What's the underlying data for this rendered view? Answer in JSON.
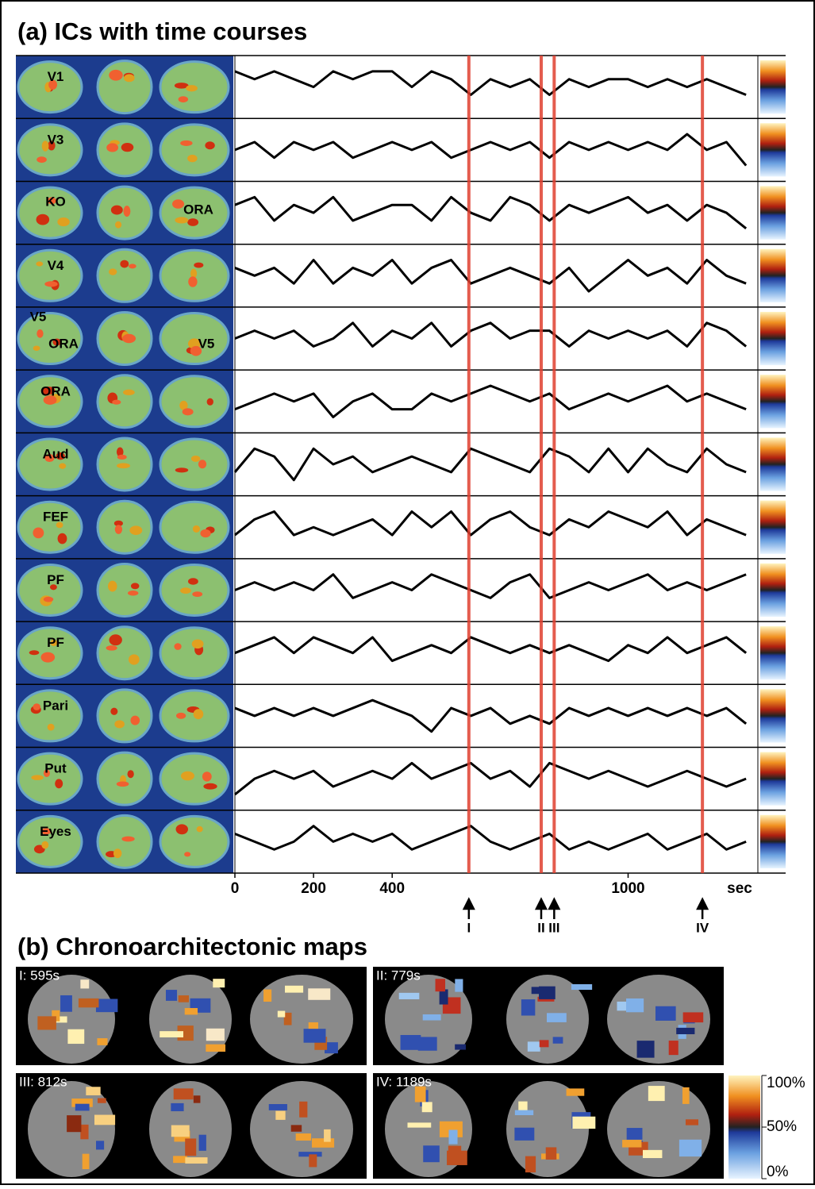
{
  "panel_a": {
    "title": "(a) ICs with time courses",
    "xlim": [
      0,
      1330
    ],
    "ylim": [
      -3,
      3
    ],
    "xticks": [
      0,
      200,
      400,
      1000
    ],
    "x_unit": "sec",
    "x": [
      0,
      50,
      100,
      150,
      200,
      250,
      300,
      350,
      400,
      450,
      500,
      550,
      600,
      650,
      700,
      750,
      800,
      850,
      900,
      950,
      1000,
      1050,
      1100,
      1150,
      1200,
      1250,
      1300
    ],
    "components": [
      {
        "labels": [
          "V1"
        ],
        "values": [
          2,
          1,
          2,
          1,
          0,
          2,
          1,
          2,
          2,
          0,
          2,
          1,
          -1,
          1,
          0,
          1,
          -1,
          1,
          0,
          1,
          1,
          0,
          1,
          0,
          1,
          0,
          -1
        ]
      },
      {
        "labels": [
          "V3"
        ],
        "values": [
          0,
          1,
          -1,
          1,
          0,
          1,
          -1,
          0,
          1,
          0,
          1,
          -1,
          0,
          1,
          0,
          1,
          -1,
          1,
          0,
          1,
          0,
          1,
          0,
          2,
          0,
          1,
          -2
        ]
      },
      {
        "labels": [
          "KO",
          "ORA"
        ],
        "values": [
          1,
          2,
          -1,
          1,
          0,
          2,
          -1,
          0,
          1,
          1,
          -1,
          2,
          0,
          -1,
          2,
          1,
          -1,
          1,
          0,
          1,
          2,
          0,
          1,
          -1,
          1,
          0,
          -2
        ]
      },
      {
        "labels": [
          "V4"
        ],
        "values": [
          1,
          0,
          1,
          -1,
          2,
          -1,
          1,
          0,
          2,
          -1,
          1,
          2,
          -1,
          0,
          1,
          0,
          -1,
          1,
          -2,
          0,
          2,
          0,
          1,
          -1,
          2,
          0,
          -1
        ]
      },
      {
        "labels": [
          "V5",
          "ORA",
          "V5"
        ],
        "values": [
          0,
          1,
          0,
          1,
          -1,
          0,
          2,
          -1,
          1,
          0,
          2,
          -1,
          1,
          2,
          0,
          1,
          1,
          -1,
          1,
          0,
          1,
          0,
          1,
          -1,
          2,
          1,
          -1
        ]
      },
      {
        "labels": [
          "ORA"
        ],
        "values": [
          -1,
          0,
          1,
          0,
          1,
          -2,
          0,
          1,
          -1,
          -1,
          1,
          0,
          1,
          2,
          1,
          0,
          1,
          -1,
          0,
          1,
          0,
          1,
          2,
          0,
          1,
          0,
          -1
        ]
      },
      {
        "labels": [
          "Aud"
        ],
        "values": [
          -1,
          2,
          1,
          -2,
          2,
          0,
          1,
          -1,
          0,
          1,
          0,
          -1,
          2,
          1,
          0,
          -1,
          2,
          1,
          -1,
          2,
          -1,
          2,
          0,
          -1,
          2,
          0,
          -1
        ]
      },
      {
        "labels": [
          "FEF"
        ],
        "values": [
          -1,
          1,
          2,
          -1,
          0,
          -1,
          0,
          1,
          -1,
          2,
          0,
          2,
          -1,
          1,
          2,
          0,
          -1,
          1,
          0,
          2,
          1,
          0,
          2,
          -1,
          1,
          0,
          -1
        ]
      },
      {
        "labels": [
          "PF"
        ],
        "values": [
          0,
          1,
          0,
          1,
          0,
          2,
          -1,
          0,
          1,
          0,
          2,
          1,
          0,
          -1,
          1,
          2,
          -1,
          0,
          1,
          0,
          1,
          2,
          0,
          1,
          0,
          1,
          2
        ]
      },
      {
        "labels": [
          "PF"
        ],
        "values": [
          0,
          1,
          2,
          0,
          2,
          1,
          0,
          2,
          -1,
          0,
          1,
          0,
          2,
          1,
          0,
          1,
          0,
          1,
          0,
          -1,
          1,
          0,
          2,
          0,
          1,
          2,
          0
        ]
      },
      {
        "labels": [
          "Pari"
        ],
        "values": [
          1,
          0,
          1,
          0,
          1,
          0,
          1,
          2,
          1,
          0,
          -2,
          1,
          0,
          1,
          -1,
          0,
          -1,
          1,
          0,
          1,
          0,
          1,
          0,
          1,
          0,
          1,
          -1
        ]
      },
      {
        "labels": [
          "Put"
        ],
        "values": [
          -2,
          0,
          1,
          0,
          1,
          -1,
          0,
          1,
          0,
          2,
          0,
          1,
          2,
          0,
          1,
          -1,
          2,
          1,
          0,
          1,
          0,
          -1,
          0,
          1,
          0,
          -1,
          0
        ]
      },
      {
        "labels": [
          "Eyes"
        ],
        "values": [
          1,
          0,
          -1,
          0,
          2,
          0,
          1,
          0,
          1,
          -1,
          0,
          1,
          2,
          0,
          -1,
          0,
          1,
          -1,
          0,
          -1,
          0,
          1,
          -1,
          0,
          1,
          -1,
          0
        ]
      }
    ],
    "events": [
      {
        "label": "I",
        "time": 595
      },
      {
        "label": "II",
        "time": 779
      },
      {
        "label": "III",
        "time": 812
      },
      {
        "label": "IV",
        "time": 1189
      }
    ]
  },
  "panel_b": {
    "title": "(b) Chronoarchitectonic maps",
    "maps": [
      "I: 595s",
      "II: 779s",
      "III: 812s",
      "IV: 1189s"
    ],
    "colorbar": {
      "lim": [
        0,
        100
      ],
      "ticks": [
        {
          "value": 100,
          "label": "100%"
        },
        {
          "value": 50,
          "label": "50%"
        },
        {
          "value": 0,
          "label": "0%"
        }
      ]
    }
  }
}
